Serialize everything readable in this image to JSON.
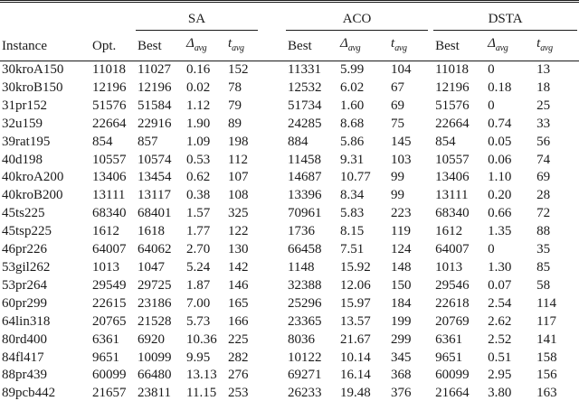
{
  "table": {
    "groups": [
      {
        "label": "SA"
      },
      {
        "label": "ACO"
      },
      {
        "label": "DSTA"
      }
    ],
    "columns": {
      "instance": "Instance",
      "opt": "Opt.",
      "best": "Best",
      "delta_symbol": "Δ",
      "t_symbol": "t",
      "sub_label": "avg"
    },
    "rows": [
      {
        "instance": "30kroA150",
        "opt": "11018",
        "sa": [
          "11027",
          "0.16",
          "152"
        ],
        "aco": [
          "11331",
          "5.99",
          "104"
        ],
        "dsta": [
          "11018",
          "0",
          "13"
        ]
      },
      {
        "instance": "30kroB150",
        "opt": "12196",
        "sa": [
          "12196",
          "0.02",
          "78"
        ],
        "aco": [
          "12532",
          "6.02",
          "67"
        ],
        "dsta": [
          "12196",
          "0.18",
          "18"
        ]
      },
      {
        "instance": "31pr152",
        "opt": "51576",
        "sa": [
          "51584",
          "1.12",
          "79"
        ],
        "aco": [
          "51734",
          "1.60",
          "69"
        ],
        "dsta": [
          "51576",
          "0",
          "25"
        ]
      },
      {
        "instance": "32u159",
        "opt": "22664",
        "sa": [
          "22916",
          "1.90",
          "89"
        ],
        "aco": [
          "24285",
          "8.68",
          "75"
        ],
        "dsta": [
          "22664",
          "0.74",
          "33"
        ]
      },
      {
        "instance": "39rat195",
        "opt": "854",
        "sa": [
          "857",
          "1.09",
          "198"
        ],
        "aco": [
          "884",
          "5.86",
          "145"
        ],
        "dsta": [
          "854",
          "0.05",
          "56"
        ]
      },
      {
        "instance": "40d198",
        "opt": "10557",
        "sa": [
          "10574",
          "0.53",
          "112"
        ],
        "aco": [
          "11458",
          "9.31",
          "103"
        ],
        "dsta": [
          "10557",
          "0.06",
          "74"
        ]
      },
      {
        "instance": "40kroA200",
        "opt": "13406",
        "sa": [
          "13454",
          "0.62",
          "107"
        ],
        "aco": [
          "14687",
          "10.77",
          "99"
        ],
        "dsta": [
          "13406",
          "1.10",
          "69"
        ]
      },
      {
        "instance": "40kroB200",
        "opt": "13111",
        "sa": [
          "13117",
          "0.38",
          "108"
        ],
        "aco": [
          "13396",
          "8.34",
          "99"
        ],
        "dsta": [
          "13111",
          "0.20",
          "28"
        ]
      },
      {
        "instance": "45ts225",
        "opt": "68340",
        "sa": [
          "68401",
          "1.57",
          "325"
        ],
        "aco": [
          "70961",
          "5.83",
          "223"
        ],
        "dsta": [
          "68340",
          "0.66",
          "72"
        ]
      },
      {
        "instance": "45tsp225",
        "opt": "1612",
        "sa": [
          "1618",
          "1.77",
          "122"
        ],
        "aco": [
          "1736",
          "8.15",
          "119"
        ],
        "dsta": [
          "1612",
          "1.35",
          "88"
        ]
      },
      {
        "instance": "46pr226",
        "opt": "64007",
        "sa": [
          "64062",
          "2.70",
          "130"
        ],
        "aco": [
          "66458",
          "7.51",
          "124"
        ],
        "dsta": [
          "64007",
          "0",
          "35"
        ]
      },
      {
        "instance": "53gil262",
        "opt": "1013",
        "sa": [
          "1047",
          "5.24",
          "142"
        ],
        "aco": [
          "1148",
          "15.92",
          "148"
        ],
        "dsta": [
          "1013",
          "1.30",
          "85"
        ]
      },
      {
        "instance": "53pr264",
        "opt": "29549",
        "sa": [
          "29725",
          "1.87",
          "146"
        ],
        "aco": [
          "32388",
          "12.06",
          "150"
        ],
        "dsta": [
          "29546",
          "0.07",
          "58"
        ]
      },
      {
        "instance": "60pr299",
        "opt": "22615",
        "sa": [
          "23186",
          "7.00",
          "165"
        ],
        "aco": [
          "25296",
          "15.97",
          "184"
        ],
        "dsta": [
          "22618",
          "2.54",
          "114"
        ]
      },
      {
        "instance": "64lin318",
        "opt": "20765",
        "sa": [
          "21528",
          "5.73",
          "166"
        ],
        "aco": [
          "23365",
          "13.57",
          "199"
        ],
        "dsta": [
          "20769",
          "2.62",
          "117"
        ]
      },
      {
        "instance": "80rd400",
        "opt": "6361",
        "sa": [
          "6920",
          "10.36",
          "225"
        ],
        "aco": [
          "8036",
          "21.67",
          "299"
        ],
        "dsta": [
          "6361",
          "2.52",
          "141"
        ]
      },
      {
        "instance": "84fl417",
        "opt": "9651",
        "sa": [
          "10099",
          "9.95",
          "282"
        ],
        "aco": [
          "10122",
          "10.14",
          "345"
        ],
        "dsta": [
          "9651",
          "0.51",
          "158"
        ]
      },
      {
        "instance": "88pr439",
        "opt": "60099",
        "sa": [
          "66480",
          "13.13",
          "276"
        ],
        "aco": [
          "69271",
          "16.14",
          "368"
        ],
        "dsta": [
          "60099",
          "2.95",
          "156"
        ]
      },
      {
        "instance": "89pcb442",
        "opt": "21657",
        "sa": [
          "23811",
          "11.15",
          "253"
        ],
        "aco": [
          "26233",
          "19.48",
          "376"
        ],
        "dsta": [
          "21664",
          "3.80",
          "163"
        ]
      }
    ]
  }
}
